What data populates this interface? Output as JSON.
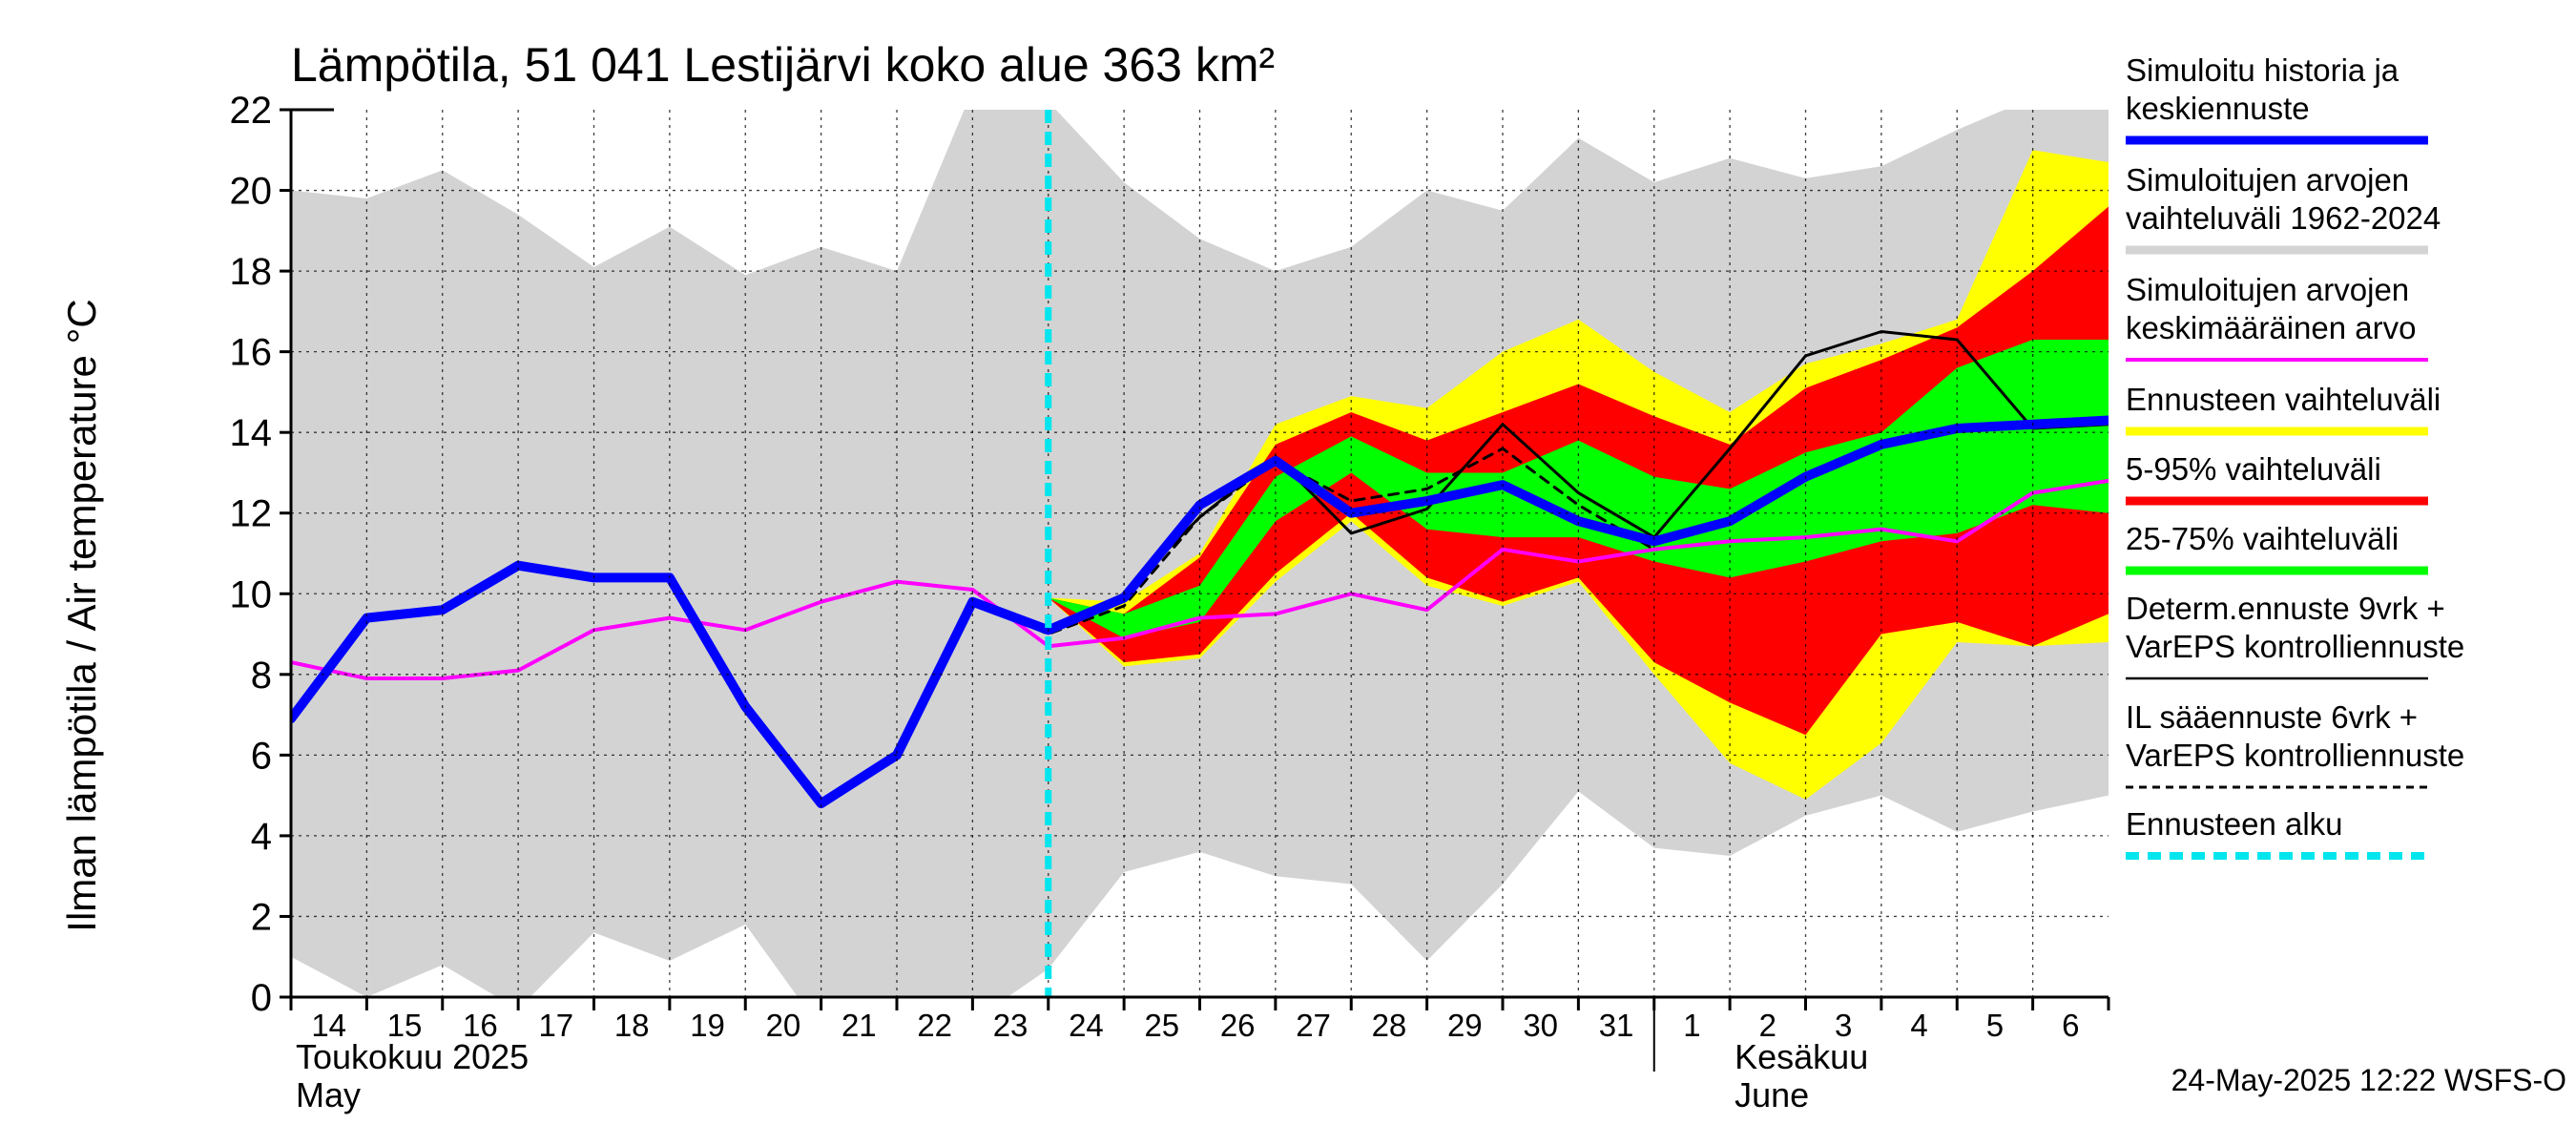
{
  "chart_data": {
    "type": "line",
    "title": "Lämpötila, 51 041 Lestijärvi koko alue 363 km²",
    "ylabel": "Ilman lämpötila / Air temperature   °C",
    "ylim": [
      0,
      22
    ],
    "yticks": [
      0,
      2,
      4,
      6,
      8,
      10,
      12,
      14,
      16,
      18,
      20,
      22
    ],
    "xlim": [
      0,
      24
    ],
    "x_days": [
      0,
      1,
      2,
      3,
      4,
      5,
      6,
      7,
      8,
      9,
      10,
      11,
      12,
      13,
      14,
      15,
      16,
      17,
      18,
      19,
      20,
      21,
      22,
      23,
      24
    ],
    "day_labels": [
      "14",
      "15",
      "16",
      "17",
      "18",
      "19",
      "20",
      "21",
      "22",
      "23",
      "24",
      "25",
      "26",
      "27",
      "28",
      "29",
      "30",
      "31",
      "1",
      "2",
      "3",
      "4",
      "5",
      "6"
    ],
    "month_labels": [
      {
        "fi": "Toukokuu  2025",
        "en": "May"
      },
      {
        "fi": "Kesäkuu",
        "en": "June"
      }
    ],
    "forecast_start_x": 10,
    "grid": true,
    "legend_position": "right",
    "timestamp": "24-May-2025 12:22 WSFS-O",
    "series": [
      {
        "name": "Simuloitujen arvojen vaihteluväli 1962-2024",
        "kind": "band",
        "color": "#d3d3d3",
        "upper": [
          20,
          19.8,
          20.5,
          19.4,
          18.1,
          19.1,
          17.9,
          18.6,
          18.0,
          22.5,
          22.2,
          20.2,
          18.8,
          18.0,
          18.6,
          20.0,
          19.5,
          21.3,
          20.2,
          20.8,
          20.3,
          20.6,
          21.5,
          22.3,
          22.5
        ],
        "lower": [
          1.0,
          0.0,
          0.8,
          -0.3,
          1.6,
          0.9,
          1.8,
          -0.8,
          -0.8,
          -0.6,
          0.7,
          3.1,
          3.6,
          3.0,
          2.8,
          0.9,
          2.8,
          5.1,
          3.7,
          3.5,
          4.5,
          5.0,
          4.1,
          4.6,
          5.0
        ]
      },
      {
        "name": "Ennusteen vaihteluväli",
        "kind": "band",
        "color": "#ffff00",
        "x_start": 10,
        "upper": [
          9.9,
          9.8,
          11.0,
          14.2,
          14.9,
          14.6,
          16.0,
          16.8,
          15.5,
          14.5,
          15.7,
          16.2,
          16.8,
          21.0,
          20.7,
          19.0
        ],
        "lower": [
          9.9,
          8.2,
          8.4,
          10.3,
          11.8,
          10.2,
          9.7,
          10.3,
          8.0,
          5.8,
          4.9,
          6.3,
          8.8,
          8.7,
          8.8,
          9.9
        ]
      },
      {
        "name": "5-95% vaihteluväli",
        "kind": "band",
        "color": "#ff0000",
        "x_start": 10,
        "upper": [
          9.9,
          9.5,
          10.9,
          13.7,
          14.5,
          13.8,
          14.5,
          15.2,
          14.4,
          13.7,
          15.1,
          15.8,
          16.6,
          18.0,
          19.6,
          18.1
        ],
        "lower": [
          9.9,
          8.3,
          8.5,
          10.5,
          12.0,
          10.4,
          9.8,
          10.4,
          8.3,
          7.3,
          6.5,
          9.0,
          9.3,
          8.7,
          9.5,
          9.8
        ]
      },
      {
        "name": "25-75% vaihteluväli",
        "kind": "band",
        "color": "#00ff00",
        "x_start": 10,
        "upper": [
          9.9,
          9.5,
          10.2,
          12.9,
          13.9,
          13.0,
          13.0,
          13.8,
          12.9,
          12.6,
          13.5,
          14.0,
          15.6,
          16.3,
          16.3,
          15.8
        ],
        "lower": [
          9.9,
          8.9,
          9.3,
          11.8,
          13.0,
          11.6,
          11.4,
          11.4,
          10.8,
          10.4,
          10.8,
          11.3,
          11.5,
          12.2,
          12.0,
          11.9
        ]
      },
      {
        "name": "Simuloitujen arvojen keskimääräinen arvo",
        "kind": "line",
        "color": "#ff00ff",
        "width": 4,
        "values": [
          8.3,
          7.9,
          7.9,
          8.1,
          9.1,
          9.4,
          9.1,
          9.8,
          10.3,
          10.1,
          8.7,
          8.9,
          9.4,
          9.5,
          10.0,
          9.6,
          11.1,
          10.8,
          11.1,
          11.3,
          11.4,
          11.6,
          11.3,
          12.5,
          12.8
        ]
      },
      {
        "name": "Determ.ennuste 9vrk + VarEPS kontrolliennuste",
        "kind": "line",
        "color": "#000000",
        "width": 3,
        "x_start": 9,
        "values": [
          9.8,
          9.1,
          10.0,
          11.9,
          13.4,
          11.5,
          12.1,
          14.2,
          12.5,
          11.4,
          13.6,
          15.9,
          16.5,
          16.3,
          14.1,
          14.2
        ]
      },
      {
        "name": "IL sääennuste 6vrk + VarEPS kontrolliennuste",
        "kind": "line",
        "color": "#000000",
        "width": 3,
        "dash": "10,8",
        "x_start": 9,
        "values": [
          9.8,
          9.0,
          9.7,
          11.9,
          13.3,
          12.3,
          12.6,
          13.6,
          12.2,
          11.1
        ]
      },
      {
        "name": "Simuloitu historia ja keskiennuste",
        "kind": "line",
        "color": "#0000ff",
        "width": 10,
        "values": [
          6.9,
          9.4,
          9.6,
          10.7,
          10.4,
          10.4,
          7.2,
          4.8,
          6.0,
          9.8,
          9.1,
          9.9,
          12.2,
          13.3,
          12.0,
          12.3,
          12.7,
          11.8,
          11.3,
          11.8,
          12.9,
          13.7,
          14.1,
          14.2,
          14.3
        ]
      }
    ]
  },
  "legend": [
    {
      "lines": [
        "Simuloitu historia ja",
        "keskiennuste"
      ],
      "color": "#0000ff",
      "style": "thick"
    },
    {
      "lines": [
        "Simuloitujen arvojen",
        "vaihteluväli 1962-2024"
      ],
      "color": "#d3d3d3",
      "style": "thick"
    },
    {
      "lines": [
        "Simuloitujen arvojen",
        "keskimääräinen arvo"
      ],
      "color": "#ff00ff",
      "style": "medium"
    },
    {
      "lines": [
        "Ennusteen vaihteluväli"
      ],
      "color": "#ffff00",
      "style": "thick"
    },
    {
      "lines": [
        "5-95% vaihteluväli"
      ],
      "color": "#ff0000",
      "style": "thick"
    },
    {
      "lines": [
        "25-75% vaihteluväli"
      ],
      "color": "#00ff00",
      "style": "thick"
    },
    {
      "lines": [
        "Determ.ennuste 9vrk +",
        "VarEPS kontrolliennuste"
      ],
      "color": "#000000",
      "style": "thin"
    },
    {
      "lines": [
        "IL sääennuste 6vrk  +",
        "  VarEPS kontrolliennuste"
      ],
      "color": "#000000",
      "style": "dashed"
    },
    {
      "lines": [
        "Ennusteen alku"
      ],
      "color": "#00e5ee",
      "style": "dotted"
    }
  ]
}
